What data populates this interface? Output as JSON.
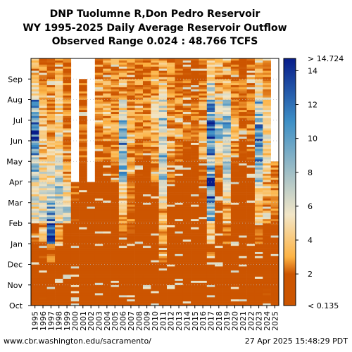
{
  "title_line1": "DNP Tuolumne R,Don Pedro Reservoir",
  "title_line2": "WY 1995-2025 Daily Average Reservoir Outflow",
  "title_line3": "Observed Range 0.024 : 48.766 TCFS",
  "footer_left": "www.cbr.washington.edu/sacramento/",
  "footer_right": "27 Apr 2025 15:48:29 PDT",
  "chart_data": {
    "type": "heatmap",
    "x_label": "",
    "y_label": "",
    "x_categories": [
      "1995",
      "1996",
      "1997",
      "1998",
      "1999",
      "2000",
      "2001",
      "2002",
      "2003",
      "2004",
      "2005",
      "2006",
      "2007",
      "2008",
      "2009",
      "2010",
      "2011",
      "2012",
      "2013",
      "2014",
      "2015",
      "2016",
      "2017",
      "2018",
      "2019",
      "2020",
      "2021",
      "2022",
      "2023",
      "2024",
      "2025"
    ],
    "y_categories": [
      "Oct",
      "Nov",
      "Dec",
      "Jan",
      "Feb",
      "Mar",
      "Apr",
      "May",
      "Jun",
      "Jul",
      "Aug",
      "Sep"
    ],
    "colorbar": {
      "min": 0.135,
      "max": 14.724,
      "ticks": [
        2,
        4,
        6,
        8,
        10,
        12,
        14
      ],
      "min_label": "< 0.135",
      "max_label": "> 14.724"
    },
    "units": "TCFS",
    "monthly_typical_values": {
      "columns": "Oct..Sep",
      "1995": [
        1.0,
        1.0,
        1.2,
        2.0,
        5.0,
        6.0,
        8.0,
        9.0,
        11.0,
        10.0,
        4.0,
        3.0
      ],
      "1996": [
        1.5,
        1.5,
        1.5,
        3.0,
        5.5,
        6.0,
        5.5,
        3.5,
        4.0,
        3.5,
        3.0,
        2.5
      ],
      "1997": [
        1.2,
        1.2,
        2.0,
        14.5,
        9.0,
        6.0,
        5.0,
        4.0,
        3.0,
        2.5,
        2.5,
        2.0
      ],
      "1998": [
        1.0,
        1.0,
        1.2,
        3.0,
        6.0,
        7.0,
        7.0,
        4.5,
        5.0,
        4.0,
        3.5,
        3.0
      ],
      "1999": [
        1.0,
        1.0,
        1.2,
        1.5,
        6.0,
        5.0,
        3.0,
        2.5,
        2.5,
        2.5,
        2.0,
        2.0
      ],
      "2000": [
        1.0,
        1.0,
        1.0,
        1.0,
        1.5,
        2.0,
        null,
        null,
        null,
        null,
        null,
        null
      ],
      "2001": [
        0.5,
        0.5,
        0.5,
        0.5,
        0.5,
        0.5,
        1.5,
        2.0,
        2.0,
        2.0,
        2.0,
        null
      ],
      "2002": [
        0.5,
        0.5,
        0.5,
        0.5,
        0.5,
        0.5,
        null,
        null,
        null,
        null,
        null,
        null
      ],
      "2003": [
        0.5,
        0.5,
        0.5,
        0.5,
        0.5,
        0.5,
        1.5,
        2.0,
        2.5,
        3.0,
        3.0,
        2.5
      ],
      "2004": [
        0.5,
        0.5,
        0.5,
        0.8,
        0.8,
        0.8,
        1.5,
        2.0,
        2.5,
        3.0,
        3.0,
        2.5
      ],
      "2005": [
        0.8,
        1.0,
        1.0,
        1.0,
        1.0,
        1.0,
        2.0,
        2.5,
        3.0,
        3.0,
        2.5,
        2.5
      ],
      "2006": [
        1.0,
        1.0,
        1.2,
        2.0,
        3.5,
        4.0,
        8.0,
        9.0,
        8.0,
        5.0,
        3.0,
        2.5
      ],
      "2007": [
        1.0,
        1.0,
        1.2,
        1.5,
        2.0,
        2.0,
        2.5,
        3.0,
        3.0,
        3.0,
        2.5,
        2.5
      ],
      "2008": [
        0.8,
        0.8,
        0.8,
        0.8,
        0.8,
        0.8,
        1.5,
        2.0,
        2.5,
        2.5,
        2.5,
        2.0
      ],
      "2009": [
        0.5,
        0.5,
        0.5,
        0.5,
        0.8,
        0.8,
        1.5,
        2.0,
        2.5,
        2.5,
        2.5,
        2.0
      ],
      "2010": [
        0.5,
        0.5,
        0.5,
        0.8,
        1.0,
        1.5,
        2.5,
        3.0,
        4.0,
        4.5,
        3.0,
        2.5
      ],
      "2011": [
        1.0,
        1.0,
        2.0,
        3.5,
        3.5,
        5.0,
        8.0,
        8.0,
        6.0,
        7.0,
        4.0,
        3.0
      ],
      "2012": [
        1.0,
        1.0,
        1.0,
        1.0,
        1.0,
        1.0,
        2.0,
        2.5,
        3.0,
        3.0,
        2.5,
        2.5
      ],
      "2013": [
        0.8,
        0.8,
        0.8,
        0.8,
        0.8,
        0.8,
        1.5,
        2.0,
        2.5,
        2.5,
        2.5,
        2.0
      ],
      "2014": [
        0.5,
        0.5,
        0.5,
        0.5,
        0.5,
        0.5,
        1.0,
        1.5,
        2.0,
        2.0,
        2.0,
        1.5
      ],
      "2015": [
        0.5,
        0.5,
        0.5,
        0.5,
        0.5,
        0.5,
        1.0,
        1.5,
        2.0,
        2.0,
        2.0,
        1.5
      ],
      "2016": [
        0.5,
        0.5,
        0.5,
        0.5,
        0.8,
        1.5,
        2.0,
        3.0,
        3.0,
        3.0,
        2.5,
        2.0
      ],
      "2017": [
        0.8,
        1.0,
        2.0,
        4.0,
        8.0,
        12.0,
        11.0,
        10.0,
        11.0,
        9.0,
        6.0,
        4.0
      ],
      "2018": [
        1.5,
        1.0,
        1.0,
        1.0,
        1.0,
        1.5,
        3.0,
        4.0,
        8.0,
        5.0,
        3.5,
        3.0
      ],
      "2019": [
        1.0,
        1.0,
        1.0,
        2.0,
        3.0,
        5.0,
        7.0,
        6.0,
        8.0,
        7.0,
        4.0,
        3.0
      ],
      "2020": [
        1.0,
        1.0,
        1.0,
        1.0,
        1.0,
        1.0,
        1.5,
        2.5,
        3.0,
        3.0,
        2.5,
        2.0
      ],
      "2021": [
        0.5,
        0.5,
        0.5,
        0.5,
        0.5,
        0.5,
        1.0,
        1.5,
        2.0,
        2.0,
        2.0,
        1.5
      ],
      "2022": [
        0.5,
        0.5,
        0.5,
        0.8,
        0.8,
        0.8,
        1.5,
        2.0,
        2.5,
        2.5,
        2.0,
        2.0
      ],
      "2023": [
        0.8,
        0.8,
        1.0,
        2.0,
        4.0,
        5.0,
        9.0,
        10.0,
        10.0,
        8.0,
        5.0,
        3.0
      ],
      "2024": [
        1.5,
        1.2,
        1.2,
        1.5,
        2.5,
        3.0,
        4.0,
        4.5,
        5.0,
        4.0,
        3.0,
        2.5
      ],
      "2025": [
        1.0,
        1.0,
        1.0,
        1.5,
        2.0,
        2.5,
        2.5,
        null,
        null,
        null,
        null,
        null
      ]
    }
  },
  "colors": {
    "low": "#cc5500",
    "mid_low": "#fdb344",
    "mid": "#f2e6c7",
    "mid_high": "#3d8fc6",
    "high": "#081d8a",
    "grid": "#bbbbbb"
  }
}
